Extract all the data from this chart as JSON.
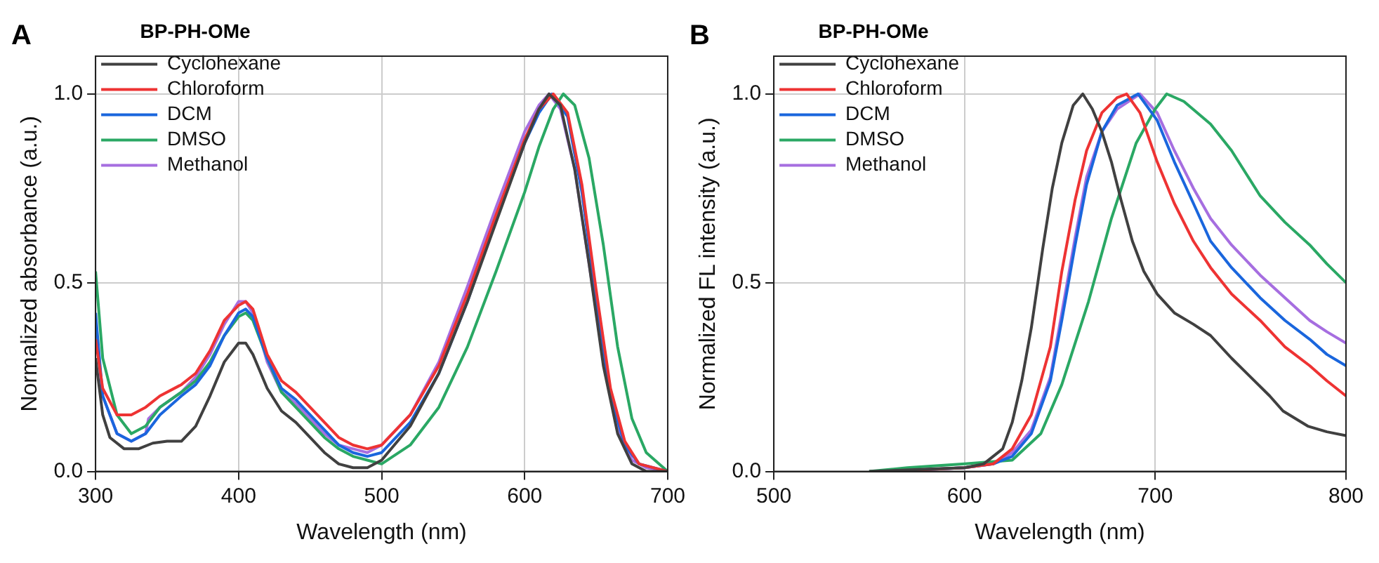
{
  "chart_data": [
    {
      "type": "line",
      "title": "A",
      "xlabel": "Wavelength (nm)",
      "ylabel": "Normalized absorbance (a.u.)",
      "legend_title": "BP-PH-OMe",
      "legend": "top left",
      "grid": true,
      "marker": "none",
      "line_style": "solid",
      "xlim": [
        300,
        700
      ],
      "ylim": [
        0,
        1.1
      ],
      "xticks": [
        300,
        400,
        500,
        600,
        700
      ],
      "yticks": [
        {
          "value": 0,
          "label": "0.0"
        },
        {
          "value": 0.5,
          "label": "0.5"
        },
        {
          "value": 1,
          "label": "1.0"
        }
      ],
      "series": [
        {
          "name": "Cyclohexane",
          "color": "#404040",
          "x": [
            300,
            305,
            310,
            320,
            330,
            340,
            350,
            360,
            370,
            380,
            390,
            400,
            405,
            410,
            420,
            430,
            440,
            450,
            460,
            470,
            480,
            490,
            500,
            520,
            540,
            560,
            580,
            600,
            610,
            617,
            625,
            635,
            645,
            655,
            665,
            675,
            685,
            700
          ],
          "values": [
            0.3,
            0.15,
            0.09,
            0.06,
            0.06,
            0.075,
            0.08,
            0.08,
            0.12,
            0.2,
            0.29,
            0.34,
            0.34,
            0.31,
            0.22,
            0.16,
            0.13,
            0.09,
            0.05,
            0.02,
            0.01,
            0.01,
            0.03,
            0.12,
            0.26,
            0.45,
            0.66,
            0.87,
            0.96,
            1.0,
            0.97,
            0.8,
            0.55,
            0.28,
            0.1,
            0.02,
            0,
            0
          ]
        },
        {
          "name": "Chloroform",
          "color": "#ee3333",
          "x": [
            300,
            305,
            315,
            325,
            335,
            345,
            360,
            370,
            380,
            390,
            400,
            405,
            410,
            420,
            430,
            440,
            450,
            460,
            470,
            480,
            490,
            500,
            520,
            540,
            560,
            580,
            600,
            610,
            620,
            630,
            640,
            650,
            660,
            670,
            680,
            700
          ],
          "values": [
            0.35,
            0.22,
            0.15,
            0.15,
            0.17,
            0.2,
            0.23,
            0.26,
            0.32,
            0.4,
            0.44,
            0.45,
            0.43,
            0.31,
            0.24,
            0.21,
            0.17,
            0.13,
            0.09,
            0.07,
            0.06,
            0.07,
            0.15,
            0.28,
            0.47,
            0.68,
            0.88,
            0.96,
            1.0,
            0.95,
            0.76,
            0.48,
            0.22,
            0.08,
            0.02,
            0
          ]
        },
        {
          "name": "DCM",
          "color": "#1a66dd",
          "x": [
            300,
            305,
            315,
            325,
            335,
            345,
            360,
            370,
            380,
            390,
            400,
            405,
            410,
            420,
            430,
            440,
            450,
            460,
            470,
            480,
            490,
            500,
            520,
            540,
            560,
            580,
            600,
            610,
            619,
            630,
            640,
            650,
            660,
            670,
            680,
            700
          ],
          "values": [
            0.42,
            0.2,
            0.1,
            0.08,
            0.1,
            0.15,
            0.2,
            0.23,
            0.28,
            0.36,
            0.42,
            0.43,
            0.41,
            0.3,
            0.22,
            0.19,
            0.15,
            0.11,
            0.07,
            0.05,
            0.04,
            0.05,
            0.13,
            0.26,
            0.45,
            0.67,
            0.87,
            0.95,
            1.0,
            0.94,
            0.74,
            0.46,
            0.2,
            0.07,
            0.02,
            0
          ]
        },
        {
          "name": "DMSO",
          "color": "#2aa864",
          "x": [
            300,
            305,
            315,
            325,
            335,
            345,
            360,
            370,
            380,
            390,
            400,
            405,
            410,
            420,
            430,
            440,
            450,
            460,
            470,
            480,
            490,
            500,
            520,
            540,
            560,
            580,
            600,
            610,
            620,
            627,
            635,
            645,
            655,
            665,
            675,
            685,
            700
          ],
          "values": [
            0.53,
            0.3,
            0.15,
            0.1,
            0.12,
            0.17,
            0.21,
            0.24,
            0.29,
            0.36,
            0.41,
            0.42,
            0.4,
            0.3,
            0.21,
            0.17,
            0.13,
            0.09,
            0.06,
            0.04,
            0.03,
            0.02,
            0.07,
            0.17,
            0.33,
            0.53,
            0.74,
            0.86,
            0.96,
            1.0,
            0.97,
            0.83,
            0.6,
            0.33,
            0.14,
            0.05,
            0
          ]
        },
        {
          "name": "Methanol",
          "color": "#a66ee0",
          "x": [
            300,
            305,
            315,
            325,
            335,
            337,
            345,
            360,
            370,
            380,
            390,
            400,
            405,
            410,
            420,
            430,
            440,
            450,
            460,
            470,
            480,
            490,
            500,
            520,
            540,
            560,
            580,
            600,
            610,
            617,
            625,
            635,
            645,
            655,
            665,
            675,
            685,
            700
          ],
          "values": [
            0.38,
            0.2,
            0.1,
            0.08,
            0.1,
            0.14,
            0.17,
            0.21,
            0.25,
            0.31,
            0.39,
            0.45,
            0.45,
            0.42,
            0.29,
            0.21,
            0.18,
            0.14,
            0.1,
            0.07,
            0.06,
            0.05,
            0.07,
            0.15,
            0.29,
            0.49,
            0.7,
            0.9,
            0.97,
            1.0,
            0.96,
            0.8,
            0.55,
            0.3,
            0.11,
            0.03,
            0.01,
            0
          ]
        }
      ]
    },
    {
      "type": "line",
      "title": "B",
      "xlabel": "Wavelength (nm)",
      "ylabel": "Normalized FL intensity (a.u.)",
      "legend_title": "BP-PH-OMe",
      "legend": "top left",
      "grid": true,
      "marker": "none",
      "line_style": "solid",
      "xlim": [
        500,
        800
      ],
      "ylim": [
        0,
        1.1
      ],
      "xticks": [
        500,
        600,
        700,
        800
      ],
      "yticks": [
        {
          "value": 0,
          "label": "0.0"
        },
        {
          "value": 0.5,
          "label": "0.5"
        },
        {
          "value": 1,
          "label": "1.0"
        }
      ],
      "series": [
        {
          "name": "Cyclohexane",
          "color": "#404040",
          "x": [
            550,
            600,
            610,
            620,
            625,
            630,
            635,
            641,
            646,
            651,
            657,
            662,
            667,
            672,
            677,
            682,
            688,
            694,
            701,
            710,
            720,
            729,
            740,
            750,
            760,
            767,
            780,
            790,
            800
          ],
          "values": [
            0,
            0.01,
            0.02,
            0.06,
            0.13,
            0.24,
            0.38,
            0.59,
            0.75,
            0.87,
            0.97,
            1.0,
            0.96,
            0.9,
            0.82,
            0.72,
            0.61,
            0.53,
            0.47,
            0.42,
            0.39,
            0.36,
            0.3,
            0.25,
            0.2,
            0.16,
            0.12,
            0.105,
            0.095
          ]
        },
        {
          "name": "Chloroform",
          "color": "#ee3333",
          "x": [
            560,
            600,
            615,
            625,
            635,
            645,
            651,
            658,
            664,
            672,
            680,
            685,
            692,
            701,
            710,
            720,
            729,
            740,
            755,
            768,
            781,
            790,
            800
          ],
          "values": [
            0,
            0.01,
            0.02,
            0.06,
            0.15,
            0.33,
            0.53,
            0.72,
            0.85,
            0.95,
            0.99,
            1.0,
            0.95,
            0.82,
            0.71,
            0.61,
            0.54,
            0.47,
            0.4,
            0.33,
            0.28,
            0.24,
            0.2
          ]
        },
        {
          "name": "DCM",
          "color": "#1a66dd",
          "x": [
            560,
            600,
            615,
            625,
            635,
            645,
            651,
            658,
            664,
            672,
            680,
            691,
            701,
            710,
            720,
            729,
            740,
            755,
            768,
            781,
            790,
            800
          ],
          "values": [
            0,
            0.01,
            0.02,
            0.04,
            0.1,
            0.24,
            0.4,
            0.6,
            0.76,
            0.9,
            0.97,
            1.0,
            0.93,
            0.82,
            0.71,
            0.61,
            0.54,
            0.46,
            0.4,
            0.35,
            0.31,
            0.28
          ]
        },
        {
          "name": "DMSO",
          "color": "#2aa864",
          "x": [
            550,
            570,
            600,
            625,
            640,
            651,
            665,
            677,
            690,
            700,
            706,
            715,
            729,
            740,
            755,
            768,
            781,
            790,
            800
          ],
          "values": [
            0,
            0.01,
            0.02,
            0.03,
            0.1,
            0.23,
            0.45,
            0.67,
            0.87,
            0.96,
            1.0,
            0.98,
            0.92,
            0.85,
            0.73,
            0.66,
            0.6,
            0.55,
            0.5
          ]
        },
        {
          "name": "Methanol",
          "color": "#a66ee0",
          "x": [
            560,
            600,
            615,
            625,
            635,
            645,
            651,
            658,
            664,
            672,
            680,
            692,
            701,
            710,
            720,
            729,
            740,
            755,
            768,
            781,
            790,
            800
          ],
          "values": [
            0,
            0.01,
            0.02,
            0.05,
            0.11,
            0.25,
            0.42,
            0.62,
            0.78,
            0.9,
            0.96,
            1.0,
            0.95,
            0.85,
            0.75,
            0.67,
            0.6,
            0.52,
            0.46,
            0.4,
            0.37,
            0.34
          ]
        }
      ]
    }
  ]
}
